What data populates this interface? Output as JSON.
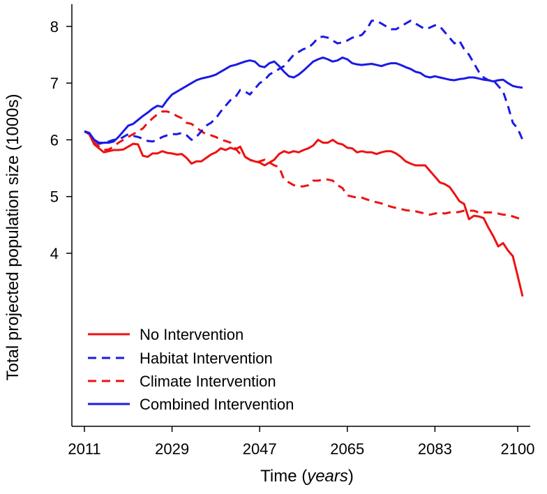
{
  "chart_data": {
    "type": "line",
    "title": "",
    "xlabel_main": "Time (",
    "xlabel_italic": "years",
    "xlabel_close": ")",
    "ylabel": "Total projected population size (1000s)",
    "x_ticks": [
      2011,
      2029,
      2047,
      2065,
      2083,
      2100
    ],
    "y_ticks": [
      4,
      5,
      6,
      7,
      8
    ],
    "xlim": [
      2011,
      2101
    ],
    "ylim": [
      2.5,
      8.3
    ],
    "legend_position": "bottom-left",
    "grid": false,
    "series": [
      {
        "name": "No Intervention",
        "color": "#ee1111",
        "dash": "solid",
        "x": [
          2011,
          2012,
          2013,
          2014,
          2015,
          2016,
          2017,
          2018,
          2019,
          2020,
          2021,
          2022,
          2023,
          2024,
          2025,
          2026,
          2027,
          2028,
          2029,
          2030,
          2031,
          2032,
          2033,
          2034,
          2035,
          2036,
          2037,
          2038,
          2039,
          2040,
          2041,
          2042,
          2043,
          2044,
          2045,
          2046,
          2047,
          2048,
          2049,
          2050,
          2051,
          2052,
          2053,
          2054,
          2055,
          2056,
          2057,
          2058,
          2059,
          2060,
          2061,
          2062,
          2063,
          2064,
          2065,
          2066,
          2067,
          2068,
          2069,
          2070,
          2071,
          2072,
          2073,
          2074,
          2075,
          2076,
          2077,
          2078,
          2079,
          2080,
          2081,
          2082,
          2083,
          2084,
          2085,
          2086,
          2087,
          2088,
          2089,
          2090,
          2091,
          2092,
          2093,
          2094,
          2095,
          2096,
          2097,
          2098,
          2099,
          2100,
          2101
        ],
        "y": [
          6.15,
          6.1,
          5.92,
          5.85,
          5.78,
          5.8,
          5.82,
          5.82,
          5.83,
          5.88,
          5.93,
          5.92,
          5.72,
          5.7,
          5.76,
          5.76,
          5.8,
          5.77,
          5.76,
          5.74,
          5.75,
          5.68,
          5.58,
          5.62,
          5.62,
          5.68,
          5.74,
          5.78,
          5.85,
          5.82,
          5.86,
          5.83,
          5.88,
          5.7,
          5.65,
          5.62,
          5.6,
          5.55,
          5.6,
          5.65,
          5.75,
          5.8,
          5.77,
          5.8,
          5.78,
          5.82,
          5.85,
          5.9,
          6.0,
          5.95,
          5.95,
          6.0,
          5.94,
          5.92,
          5.86,
          5.85,
          5.78,
          5.8,
          5.78,
          5.78,
          5.75,
          5.78,
          5.8,
          5.8,
          5.76,
          5.7,
          5.62,
          5.58,
          5.55,
          5.55,
          5.55,
          5.45,
          5.35,
          5.25,
          5.22,
          5.17,
          5.05,
          4.92,
          4.87,
          4.6,
          4.66,
          4.65,
          4.62,
          4.45,
          4.3,
          4.12,
          4.18,
          4.05,
          3.95,
          3.6,
          3.24
        ]
      },
      {
        "name": "Habitat Intervention",
        "color": "#1a1ae6",
        "dash": "dashed",
        "x": [
          2011,
          2012,
          2013,
          2014,
          2015,
          2016,
          2017,
          2018,
          2019,
          2020,
          2021,
          2022,
          2023,
          2024,
          2025,
          2026,
          2027,
          2028,
          2029,
          2030,
          2031,
          2032,
          2033,
          2034,
          2035,
          2036,
          2037,
          2038,
          2039,
          2040,
          2041,
          2042,
          2043,
          2044,
          2045,
          2046,
          2047,
          2048,
          2049,
          2050,
          2051,
          2052,
          2053,
          2054,
          2055,
          2056,
          2057,
          2058,
          2059,
          2060,
          2061,
          2062,
          2063,
          2064,
          2065,
          2066,
          2067,
          2068,
          2069,
          2070,
          2071,
          2072,
          2073,
          2074,
          2075,
          2076,
          2077,
          2078,
          2079,
          2080,
          2081,
          2082,
          2083,
          2084,
          2085,
          2086,
          2087,
          2088,
          2089,
          2090,
          2091,
          2092,
          2093,
          2094,
          2095,
          2096,
          2097,
          2098,
          2099,
          2100,
          2101
        ],
        "y": [
          6.15,
          6.12,
          6.0,
          5.95,
          5.95,
          5.97,
          6.0,
          6.0,
          6.05,
          6.1,
          6.07,
          6.05,
          6.02,
          5.98,
          5.97,
          6.0,
          6.05,
          6.08,
          6.1,
          6.1,
          6.12,
          6.08,
          6.0,
          6.05,
          6.15,
          6.25,
          6.3,
          6.38,
          6.5,
          6.6,
          6.7,
          6.75,
          6.88,
          6.85,
          6.8,
          6.9,
          7.0,
          7.05,
          7.15,
          7.2,
          7.25,
          7.3,
          7.4,
          7.5,
          7.55,
          7.6,
          7.62,
          7.7,
          7.8,
          7.82,
          7.8,
          7.75,
          7.7,
          7.72,
          7.75,
          7.8,
          7.82,
          7.85,
          7.95,
          8.1,
          8.1,
          8.05,
          8.0,
          7.95,
          7.95,
          8.0,
          8.05,
          8.1,
          8.05,
          8.0,
          7.95,
          7.98,
          8.02,
          8.0,
          7.9,
          7.8,
          7.7,
          7.75,
          7.6,
          7.5,
          7.35,
          7.2,
          7.1,
          7.05,
          7.05,
          6.95,
          6.85,
          6.6,
          6.3,
          6.2,
          6.0
        ]
      },
      {
        "name": "Climate Intervention",
        "color": "#ee1111",
        "dash": "dashed",
        "x": [
          2011,
          2012,
          2013,
          2014,
          2015,
          2016,
          2017,
          2018,
          2019,
          2020,
          2021,
          2022,
          2023,
          2024,
          2025,
          2026,
          2027,
          2028,
          2029,
          2030,
          2031,
          2032,
          2033,
          2034,
          2035,
          2036,
          2037,
          2038,
          2039,
          2040,
          2041,
          2042,
          2043,
          2044,
          2045,
          2046,
          2047,
          2048,
          2049,
          2050,
          2051,
          2052,
          2053,
          2054,
          2055,
          2056,
          2057,
          2058,
          2059,
          2060,
          2061,
          2062,
          2063,
          2064,
          2065,
          2066,
          2067,
          2068,
          2069,
          2070,
          2071,
          2072,
          2073,
          2074,
          2075,
          2076,
          2077,
          2078,
          2079,
          2080,
          2081,
          2082,
          2083,
          2084,
          2085,
          2086,
          2087,
          2088,
          2089,
          2090,
          2091,
          2092,
          2093,
          2094,
          2095,
          2096,
          2097,
          2098,
          2099,
          2100,
          2101
        ],
        "y": [
          6.15,
          6.1,
          5.95,
          5.88,
          5.82,
          5.83,
          5.88,
          5.95,
          6.0,
          6.05,
          6.1,
          6.15,
          6.2,
          6.3,
          6.38,
          6.45,
          6.5,
          6.5,
          6.47,
          6.42,
          6.38,
          6.3,
          6.28,
          6.22,
          6.15,
          6.1,
          6.08,
          6.05,
          6.0,
          5.98,
          5.95,
          5.85,
          5.75,
          5.7,
          5.65,
          5.6,
          5.62,
          5.65,
          5.6,
          5.55,
          5.52,
          5.3,
          5.25,
          5.2,
          5.18,
          5.18,
          5.2,
          5.28,
          5.28,
          5.3,
          5.3,
          5.28,
          5.2,
          5.15,
          5.02,
          5.0,
          4.98,
          4.98,
          4.95,
          4.92,
          4.9,
          4.88,
          4.85,
          4.82,
          4.8,
          4.78,
          4.76,
          4.75,
          4.74,
          4.72,
          4.7,
          4.68,
          4.7,
          4.72,
          4.7,
          4.72,
          4.72,
          4.73,
          4.75,
          4.75,
          4.75,
          4.72,
          4.72,
          4.72,
          4.72,
          4.7,
          4.68,
          4.68,
          4.65,
          4.62,
          4.6
        ]
      },
      {
        "name": "Combined Intervention",
        "color": "#1a1ae6",
        "dash": "solid",
        "x": [
          2011,
          2012,
          2013,
          2014,
          2015,
          2016,
          2017,
          2018,
          2019,
          2020,
          2021,
          2022,
          2023,
          2024,
          2025,
          2026,
          2027,
          2028,
          2029,
          2030,
          2031,
          2032,
          2033,
          2034,
          2035,
          2036,
          2037,
          2038,
          2039,
          2040,
          2041,
          2042,
          2043,
          2044,
          2045,
          2046,
          2047,
          2048,
          2049,
          2050,
          2051,
          2052,
          2053,
          2054,
          2055,
          2056,
          2057,
          2058,
          2059,
          2060,
          2061,
          2062,
          2063,
          2064,
          2065,
          2066,
          2067,
          2068,
          2069,
          2070,
          2071,
          2072,
          2073,
          2074,
          2075,
          2076,
          2077,
          2078,
          2079,
          2080,
          2081,
          2082,
          2083,
          2084,
          2085,
          2086,
          2087,
          2088,
          2089,
          2090,
          2091,
          2092,
          2093,
          2094,
          2095,
          2096,
          2097,
          2098,
          2099,
          2100,
          2101
        ],
        "y": [
          6.15,
          6.12,
          6.0,
          5.93,
          5.95,
          5.95,
          5.97,
          6.05,
          6.15,
          6.25,
          6.28,
          6.35,
          6.42,
          6.48,
          6.55,
          6.6,
          6.58,
          6.7,
          6.8,
          6.85,
          6.9,
          6.95,
          7.0,
          7.05,
          7.08,
          7.1,
          7.12,
          7.15,
          7.2,
          7.25,
          7.3,
          7.32,
          7.35,
          7.38,
          7.4,
          7.38,
          7.3,
          7.28,
          7.35,
          7.38,
          7.3,
          7.2,
          7.12,
          7.1,
          7.15,
          7.22,
          7.3,
          7.38,
          7.42,
          7.45,
          7.42,
          7.38,
          7.4,
          7.45,
          7.42,
          7.35,
          7.33,
          7.32,
          7.33,
          7.34,
          7.32,
          7.3,
          7.33,
          7.35,
          7.35,
          7.32,
          7.28,
          7.25,
          7.2,
          7.18,
          7.12,
          7.1,
          7.12,
          7.1,
          7.08,
          7.06,
          7.05,
          7.07,
          7.08,
          7.1,
          7.1,
          7.08,
          7.06,
          7.05,
          7.03,
          7.05,
          7.06,
          7.0,
          6.95,
          6.93,
          6.92
        ]
      }
    ]
  }
}
